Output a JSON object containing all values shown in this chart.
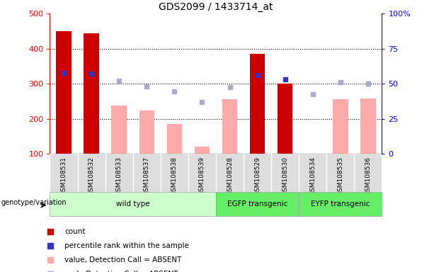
{
  "title": "GDS2099 / 1433714_at",
  "samples": [
    "GSM108531",
    "GSM108532",
    "GSM108533",
    "GSM108537",
    "GSM108538",
    "GSM108539",
    "GSM108528",
    "GSM108529",
    "GSM108530",
    "GSM108534",
    "GSM108535",
    "GSM108536"
  ],
  "count_values": [
    450,
    443,
    null,
    null,
    null,
    null,
    null,
    385,
    300,
    null,
    null,
    null
  ],
  "percentile_rank": [
    330,
    328,
    null,
    null,
    null,
    null,
    null,
    325,
    312,
    null,
    null,
    null
  ],
  "value_absent": [
    null,
    null,
    237,
    224,
    184,
    120,
    255,
    null,
    null,
    null,
    255,
    257
  ],
  "rank_absent": [
    null,
    null,
    308,
    293,
    278,
    247,
    290,
    null,
    null,
    270,
    305,
    300
  ],
  "ylim_left": [
    100,
    500
  ],
  "ylim_right": [
    0,
    100
  ],
  "left_ticks": [
    100,
    200,
    300,
    400,
    500
  ],
  "right_ticks": [
    0,
    25,
    50,
    75,
    100
  ],
  "right_tick_labels": [
    "0",
    "25",
    "50",
    "75",
    "100%"
  ],
  "groups": [
    {
      "label": "wild type",
      "start": 0,
      "end": 6,
      "color": "#ccffcc"
    },
    {
      "label": "EGFP transgenic",
      "start": 6,
      "end": 9,
      "color": "#66ee66"
    },
    {
      "label": "EYFP transgenic",
      "start": 9,
      "end": 12,
      "color": "#66ee66"
    }
  ],
  "bar_color_count": "#cc0000",
  "bar_color_absent_value": "#ffaaaa",
  "dot_color_rank": "#3333bb",
  "dot_color_absent_rank": "#aaaacc",
  "legend_items": [
    {
      "color": "#cc0000",
      "label": "count"
    },
    {
      "color": "#3333bb",
      "label": "percentile rank within the sample"
    },
    {
      "color": "#ffaaaa",
      "label": "value, Detection Call = ABSENT"
    },
    {
      "color": "#aaaacc",
      "label": "rank, Detection Call = ABSENT"
    }
  ],
  "genotype_label": "genotype/variation",
  "bar_width": 0.55,
  "sample_bg_color": "#dddddd",
  "grid_color": "#000000",
  "grid_dotted_ticks": [
    200,
    300,
    400
  ]
}
